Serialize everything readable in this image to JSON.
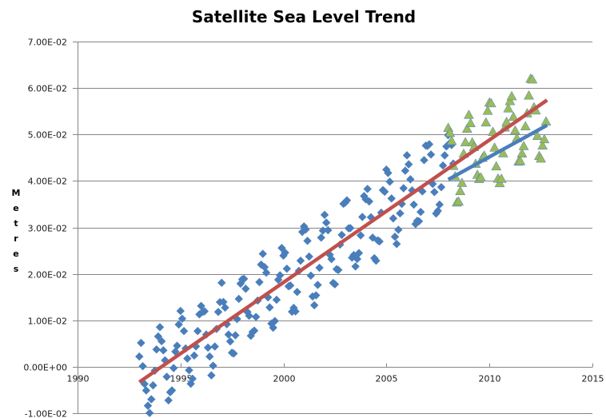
{
  "chart_data": {
    "type": "scatter",
    "title": "Satellite Sea Level Trend",
    "xlabel": "",
    "ylabel": "Metres",
    "xlim": [
      1990,
      2015
    ],
    "ylim": [
      -0.01,
      0.07
    ],
    "x_ticks": [
      1990,
      1995,
      2000,
      2005,
      2010,
      2015
    ],
    "x_tick_labels": [
      "1990",
      "1995",
      "2000",
      "2005",
      "2010",
      "2015"
    ],
    "y_ticks": [
      -0.01,
      0.0,
      0.01,
      0.02,
      0.03,
      0.04,
      0.05,
      0.06,
      0.07
    ],
    "y_tick_labels": [
      "-1.00E-02",
      "0.00E+00",
      "1.00E-02",
      "2.00E-02",
      "3.00E-02",
      "4.00E-02",
      "5.00E-02",
      "6.00E-02",
      "7.00E-02"
    ],
    "grid": "horizontal",
    "legend": "none",
    "colors": {
      "blue_series": "#4a7ebb",
      "green_series": "#9bbb59",
      "red_trend": "#c0504d",
      "blue_trend": "#4a7ebb",
      "gridline": "#868686",
      "axis": "#868686"
    },
    "series": [
      {
        "name": "Sea level (full record)",
        "marker": "diamond",
        "color": "#4a7ebb",
        "generated": {
          "note": "approximate monthly samples: trend + annual cycle",
          "x_start": 1993.0,
          "x_end": 2008.3,
          "step": 0.0833,
          "trend_start": -0.0033,
          "trend_slope": 0.00306,
          "amplitude": 0.0075,
          "phase": 0.75
        }
      },
      {
        "name": "Sea level (2008 onward)",
        "marker": "triangle",
        "color": "#9bbb59",
        "generated": {
          "note": "approximate monthly samples: trend + annual cycle",
          "x_start": 2008.0,
          "x_end": 2012.8,
          "step": 0.0833,
          "trend_start": 0.0432,
          "trend_slope": 0.0024,
          "amplitude": 0.008,
          "phase": 0.75
        }
      },
      {
        "name": "Linear trend (full record)",
        "type": "line",
        "color": "#c0504d",
        "x": [
          1993.0,
          2012.8
        ],
        "y": [
          -0.0033,
          0.0574
        ]
      },
      {
        "name": "Linear trend (2008 onward)",
        "type": "line",
        "color": "#4a7ebb",
        "x": [
          2008.0,
          2012.8
        ],
        "y": [
          0.0403,
          0.052
        ]
      }
    ]
  }
}
